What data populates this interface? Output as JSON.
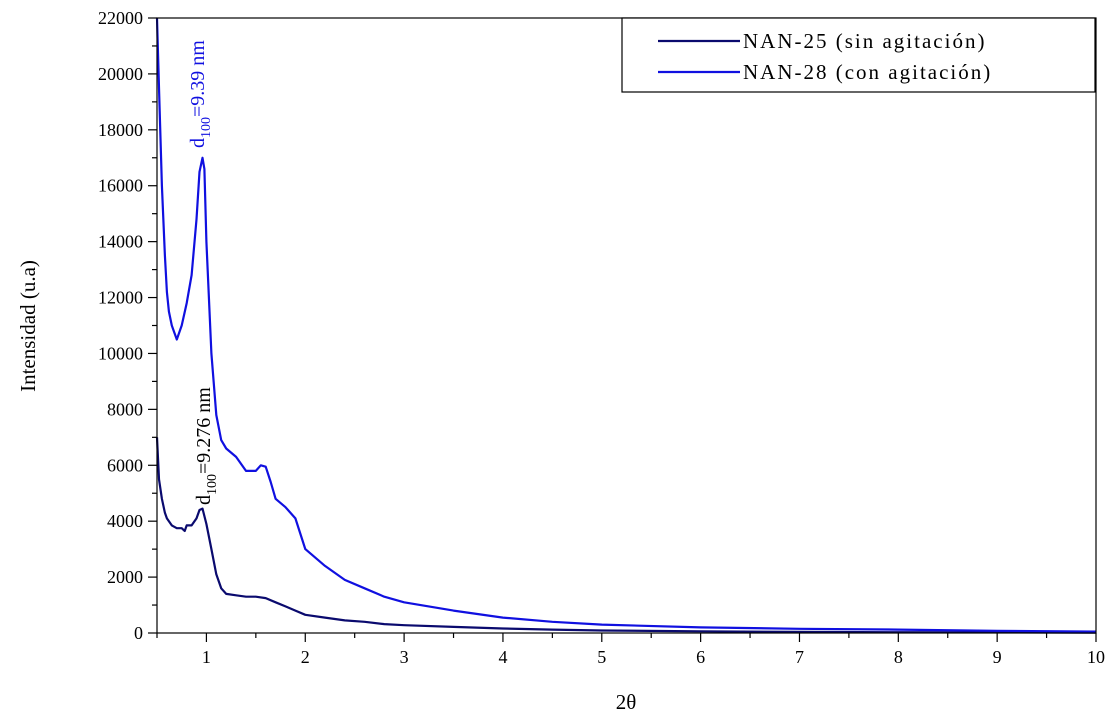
{
  "chart_data": {
    "type": "line",
    "title": "",
    "xlabel": "2θ",
    "ylabel": "Intensidad (u.a)",
    "xlim": [
      0.5,
      10
    ],
    "ylim": [
      0,
      22000
    ],
    "x_ticks": [
      1,
      2,
      3,
      4,
      5,
      6,
      7,
      8,
      9,
      10
    ],
    "x_tick_labels": [
      "1",
      "2",
      "3",
      "4",
      "5",
      "6",
      "7",
      "8",
      "9",
      "10"
    ],
    "y_ticks": [
      0,
      2000,
      4000,
      6000,
      8000,
      10000,
      12000,
      14000,
      16000,
      18000,
      20000,
      22000
    ],
    "y_tick_labels": [
      "0",
      "2000",
      "4000",
      "6000",
      "8000",
      "10000",
      "12000",
      "14000",
      "16000",
      "18000",
      "20000",
      "22000"
    ],
    "grid": false,
    "legend_position": "top-right",
    "series": [
      {
        "name": "NAN-25 (sin agitación)",
        "color": "#0a0a6e",
        "x": [
          0.5,
          0.52,
          0.55,
          0.58,
          0.6,
          0.65,
          0.7,
          0.75,
          0.78,
          0.8,
          0.85,
          0.9,
          0.93,
          0.96,
          1.0,
          1.05,
          1.1,
          1.15,
          1.2,
          1.3,
          1.4,
          1.5,
          1.6,
          1.7,
          1.8,
          1.9,
          2.0,
          2.2,
          2.4,
          2.6,
          2.8,
          3.0,
          3.5,
          4.0,
          4.5,
          5.0,
          6.0,
          7.0,
          8.0,
          9.0,
          10.0
        ],
        "y": [
          7000,
          5500,
          4800,
          4300,
          4100,
          3850,
          3750,
          3750,
          3650,
          3850,
          3850,
          4100,
          4400,
          4450,
          3900,
          3000,
          2100,
          1600,
          1400,
          1350,
          1300,
          1300,
          1250,
          1100,
          950,
          800,
          650,
          550,
          450,
          400,
          320,
          280,
          220,
          160,
          120,
          90,
          60,
          40,
          30,
          20,
          10
        ]
      },
      {
        "name": "NAN-28 (con agitación)",
        "color": "#1010e0",
        "x": [
          0.5,
          0.52,
          0.55,
          0.58,
          0.6,
          0.62,
          0.65,
          0.7,
          0.75,
          0.8,
          0.85,
          0.9,
          0.93,
          0.96,
          0.98,
          1.0,
          1.05,
          1.1,
          1.15,
          1.2,
          1.3,
          1.4,
          1.5,
          1.55,
          1.6,
          1.65,
          1.7,
          1.8,
          1.9,
          2.0,
          2.2,
          2.4,
          2.6,
          2.8,
          3.0,
          3.5,
          4.0,
          4.5,
          5.0,
          6.0,
          7.0,
          8.0,
          9.0,
          10.0
        ],
        "y": [
          22000,
          19500,
          16000,
          13500,
          12200,
          11500,
          11000,
          10500,
          11000,
          11800,
          12800,
          14800,
          16500,
          17000,
          16600,
          14000,
          10000,
          7800,
          6900,
          6600,
          6300,
          5800,
          5800,
          6000,
          5950,
          5400,
          4800,
          4500,
          4100,
          3000,
          2400,
          1900,
          1600,
          1300,
          1100,
          800,
          550,
          400,
          300,
          200,
          150,
          120,
          80,
          50
        ]
      }
    ],
    "annotations": [
      {
        "base": "d",
        "sub": "100",
        "rest": "=9.276 nm",
        "color": "#000000"
      },
      {
        "base": "d",
        "sub": "100",
        "rest": "=9.39 nm",
        "color": "#1010e0"
      }
    ]
  }
}
